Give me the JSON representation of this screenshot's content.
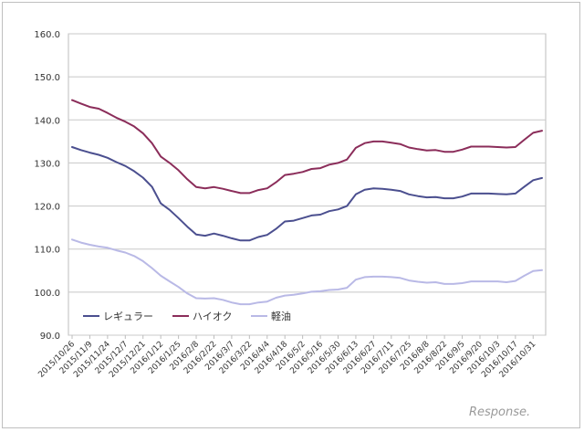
{
  "chart_data": {
    "type": "line",
    "title": "",
    "xlabel": "",
    "ylabel": "",
    "ylim": [
      90,
      160
    ],
    "yticks": [
      "90.0",
      "100.0",
      "110.0",
      "120.0",
      "130.0",
      "140.0",
      "150.0",
      "160.0"
    ],
    "grid": "horizontal",
    "legend_position": "bottom-left",
    "x": [
      "2015/10/26",
      "2015/11/2",
      "2015/11/9",
      "2015/11/16",
      "2015/11/24",
      "2015/11/30",
      "2015/12/7",
      "2015/12/14",
      "2015/12/21",
      "2015/12/28",
      "2016/1/12",
      "2016/1/18",
      "2016/1/25",
      "2016/2/1",
      "2016/2/8",
      "2016/2/15",
      "2016/2/22",
      "2016/2/29",
      "2016/3/7",
      "2016/3/14",
      "2016/3/22",
      "2016/3/28",
      "2016/4/4",
      "2016/4/11",
      "2016/4/18",
      "2016/4/25",
      "2016/5/2",
      "2016/5/9",
      "2016/5/16",
      "2016/5/23",
      "2016/5/30",
      "2016/6/6",
      "2016/6/13",
      "2016/6/20",
      "2016/6/27",
      "2016/7/4",
      "2016/7/11",
      "2016/7/19",
      "2016/7/25",
      "2016/8/1",
      "2016/8/8",
      "2016/8/15",
      "2016/8/22",
      "2016/8/29",
      "2016/9/5",
      "2016/9/12",
      "2016/9/20",
      "2016/9/26",
      "2016/10/3",
      "2016/10/11",
      "2016/10/17",
      "2016/10/24",
      "2016/10/31",
      "2016/11/7"
    ],
    "xtick_labels": [
      "2015/10/26",
      "2015/11/9",
      "2015/11/24",
      "2015/12/7",
      "2015/12/21",
      "2016/1/12",
      "2016/1/25",
      "2016/2/8",
      "2016/2/22",
      "2016/3/7",
      "2016/3/22",
      "2016/4/4",
      "2016/4/18",
      "2016/5/2",
      "2016/5/16",
      "2016/5/30",
      "2016/6/13",
      "2016/6/27",
      "2016/7/11",
      "2016/7/25",
      "2016/8/8",
      "2016/8/22",
      "2016/9/5",
      "2016/9/20",
      "2016/10/3",
      "2016/10/17",
      "2016/10/31"
    ],
    "series": [
      {
        "name": "レギュラー",
        "color": "#4b4f8f",
        "values": [
          133.7,
          133.0,
          132.4,
          131.9,
          131.2,
          130.2,
          129.3,
          128.1,
          126.6,
          124.5,
          120.6,
          119.1,
          117.2,
          115.2,
          113.4,
          113.1,
          113.6,
          113.1,
          112.5,
          112.0,
          112.0,
          112.8,
          113.3,
          114.7,
          116.4,
          116.6,
          117.2,
          117.8,
          118.0,
          118.8,
          119.2,
          120.0,
          122.7,
          123.8,
          124.1,
          124.0,
          123.8,
          123.5,
          122.7,
          122.3,
          122.0,
          122.1,
          121.8,
          121.8,
          122.2,
          122.9,
          122.9,
          122.9,
          122.8,
          122.7,
          122.9,
          124.5,
          126.0,
          126.5
        ]
      },
      {
        "name": "ハイオク",
        "color": "#8b2d5a",
        "values": [
          144.6,
          143.8,
          143.0,
          142.6,
          141.6,
          140.5,
          139.6,
          138.5,
          136.9,
          134.6,
          131.5,
          130.0,
          128.3,
          126.2,
          124.4,
          124.1,
          124.4,
          124.0,
          123.5,
          123.0,
          123.0,
          123.7,
          124.1,
          125.5,
          127.2,
          127.5,
          127.9,
          128.6,
          128.8,
          129.6,
          130.0,
          130.8,
          133.5,
          134.6,
          135.0,
          135.0,
          134.7,
          134.4,
          133.6,
          133.2,
          132.9,
          133.0,
          132.6,
          132.6,
          133.1,
          133.8,
          133.8,
          133.8,
          133.7,
          133.6,
          133.7,
          135.4,
          137.0,
          137.5
        ]
      },
      {
        "name": "軽油",
        "color": "#b9b9e6",
        "values": [
          112.2,
          111.5,
          111.0,
          110.6,
          110.3,
          109.7,
          109.2,
          108.4,
          107.2,
          105.6,
          103.8,
          102.5,
          101.2,
          99.7,
          98.6,
          98.5,
          98.6,
          98.2,
          97.6,
          97.2,
          97.2,
          97.6,
          97.8,
          98.7,
          99.2,
          99.4,
          99.7,
          100.1,
          100.2,
          100.5,
          100.6,
          101.0,
          102.9,
          103.5,
          103.6,
          103.6,
          103.5,
          103.3,
          102.7,
          102.4,
          102.2,
          102.3,
          101.9,
          101.9,
          102.1,
          102.5,
          102.5,
          102.5,
          102.5,
          102.3,
          102.6,
          103.8,
          104.9,
          105.1
        ]
      }
    ]
  },
  "watermark": "Response."
}
